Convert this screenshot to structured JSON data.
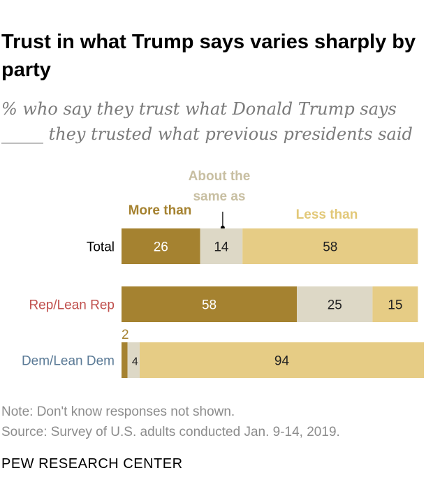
{
  "title": "Trust in what Trump says varies sharply by party",
  "subtitle": "% who say they trust what Donald Trump says _____ they trusted what previous presidents said",
  "note": "Note: Don't know responses not shown.",
  "source": "Source: Survey of U.S. adults conducted Jan. 9-14, 2019.",
  "logo": "PEW RESEARCH CENTER",
  "chart_data": {
    "type": "bar",
    "orientation": "horizontal",
    "stacked": true,
    "legend_placement": "top",
    "grid": false,
    "xlim": [
      0,
      100
    ],
    "categories": [
      "Total",
      "Rep/Lean Rep",
      "Dem/Lean Dem"
    ],
    "category_colors": [
      "#000000",
      "#c0504d",
      "#5a7a96"
    ],
    "series": [
      {
        "name": "More than",
        "values": [
          26,
          58,
          2
        ],
        "color": "#a58230",
        "label_color": "#a58230",
        "value_text_color": "#ffffff"
      },
      {
        "name": "About the same as",
        "values": [
          14,
          25,
          4
        ],
        "color": "#ddd8c6",
        "label_color": "#c8bfa2",
        "value_text_color": "#222222"
      },
      {
        "name": "Less than",
        "values": [
          58,
          15,
          94
        ],
        "color": "#e6cc85",
        "label_color": "#e2c878",
        "value_text_color": "#222222"
      }
    ]
  }
}
